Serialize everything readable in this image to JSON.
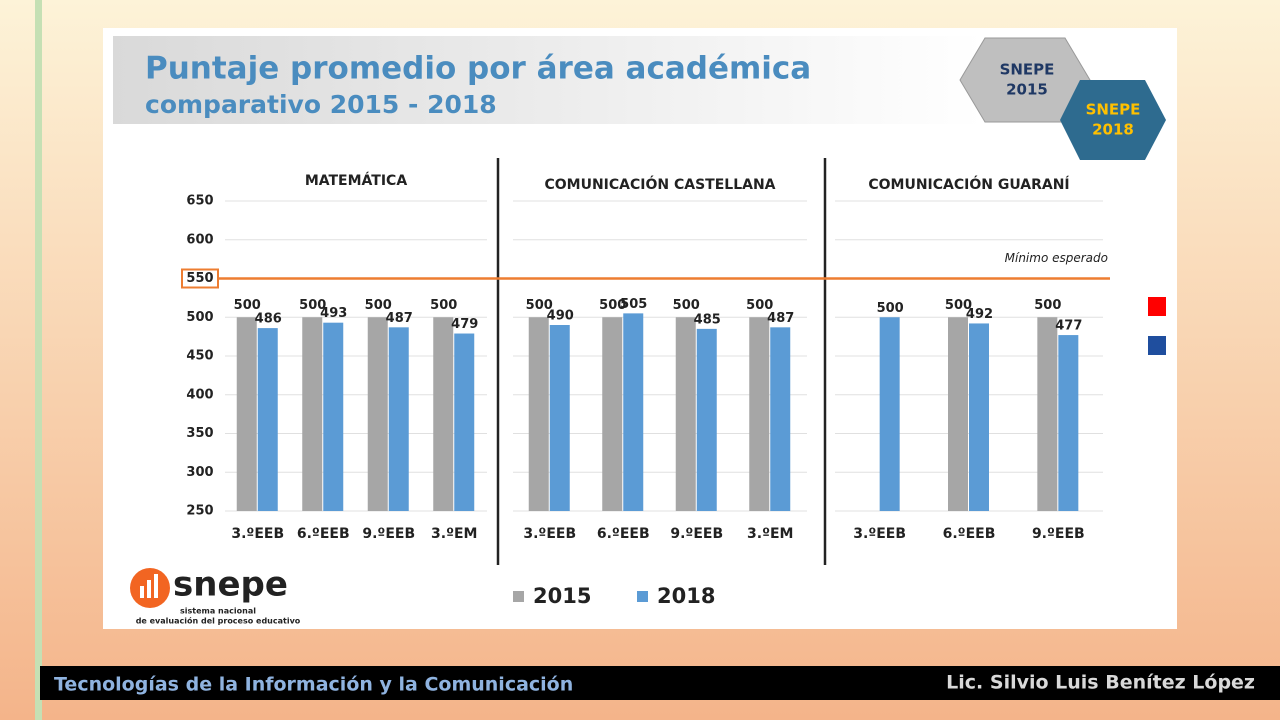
{
  "header": {
    "title": "Puntaje promedio por área académica",
    "subtitle": "comparativo 2015 - 2018",
    "badges": [
      {
        "line1": "SNEPE",
        "line2": "2015"
      },
      {
        "line1": "SNEPE",
        "line2": "2018"
      }
    ]
  },
  "logo": {
    "name": "snepe",
    "line1": "sistema nacional",
    "line2": "de evaluación del proceso educativo"
  },
  "footer": {
    "left": "Tecnologías de la Información y la Comunicación",
    "right": "Lic. Silvio Luis Benítez López"
  },
  "chart_data": [
    {
      "type": "bar",
      "title": "MATEMÁTICA",
      "categories": [
        "3.ºEEB",
        "6.ºEEB",
        "9.ºEEB",
        "3.ºEM"
      ],
      "series": [
        {
          "name": "2015",
          "color": "#a6a6a6",
          "values": [
            500,
            500,
            500,
            500
          ]
        },
        {
          "name": "2018",
          "color": "#5b9bd5",
          "values": [
            486,
            493,
            487,
            479
          ]
        }
      ],
      "ylim": [
        250,
        650
      ],
      "yticks": [
        250,
        300,
        350,
        400,
        450,
        500,
        550,
        600,
        650
      ],
      "grid": true,
      "reference_line": {
        "value": 550,
        "label": "Mínimo esperado",
        "color": "#ed7d31"
      }
    },
    {
      "type": "bar",
      "title": "COMUNICACIÓN CASTELLANA",
      "categories": [
        "3.ºEEB",
        "6.ºEEB",
        "9.ºEEB",
        "3.ºEM"
      ],
      "series": [
        {
          "name": "2015",
          "color": "#a6a6a6",
          "values": [
            500,
            500,
            500,
            500
          ]
        },
        {
          "name": "2018",
          "color": "#5b9bd5",
          "values": [
            490,
            505,
            485,
            487
          ]
        }
      ],
      "ylim": [
        250,
        650
      ],
      "grid": true
    },
    {
      "type": "bar",
      "title": "COMUNICACIÓN GUARANÍ",
      "categories": [
        "3.ºEEB",
        "6.ºEEB",
        "9.ºEEB"
      ],
      "series": [
        {
          "name": "2015",
          "color": "#a6a6a6",
          "values": [
            null,
            500,
            500
          ]
        },
        {
          "name": "2018",
          "color": "#5b9bd5",
          "values": [
            500,
            492,
            477
          ]
        }
      ],
      "ylim": [
        250,
        650
      ],
      "grid": true
    }
  ]
}
